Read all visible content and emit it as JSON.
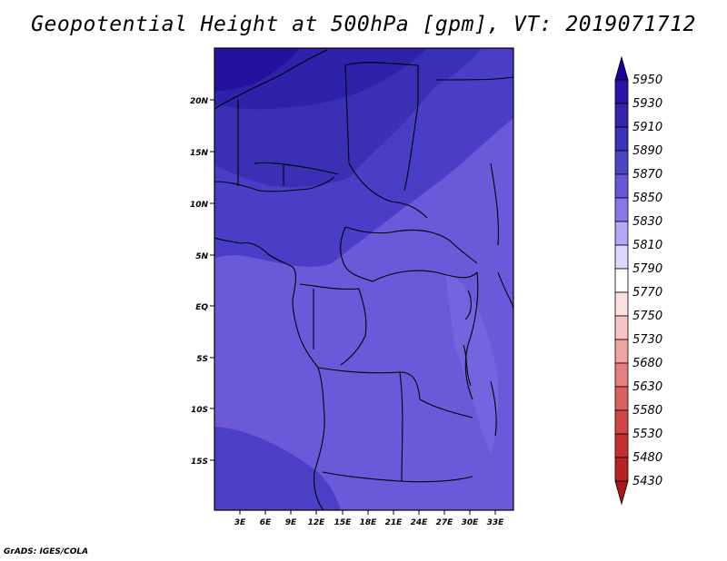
{
  "title": "Geopotential Height at 500hPa [gpm], VT: 2019071712",
  "credit": "GrADS: IGES/COLA",
  "map": {
    "lat_ticks": [
      "20N",
      "15N",
      "10N",
      "5N",
      "EQ",
      "5S",
      "10S",
      "15S"
    ],
    "lon_ticks": [
      "3E",
      "6E",
      "9E",
      "12E",
      "15E",
      "18E",
      "21E",
      "24E",
      "27E",
      "30E",
      "33E"
    ],
    "extent": {
      "lon_min": 0,
      "lon_max": 35,
      "lat_min": -20,
      "lat_max": 24
    }
  },
  "colorbar": {
    "levels": [
      "5950",
      "5930",
      "5910",
      "5890",
      "5870",
      "5850",
      "5830",
      "5810",
      "5790",
      "5770",
      "5750",
      "5730",
      "5680",
      "5630",
      "5580",
      "5530",
      "5480",
      "5430"
    ],
    "colors": [
      "#20009a",
      "#2a13a6",
      "#3324b0",
      "#3b34ba",
      "#4a46c8",
      "#6658d8",
      "#8878ea",
      "#b2a8f6",
      "#dcd8fc",
      "#ffffff",
      "#fce0e0",
      "#f8c4c4",
      "#f0a4a4",
      "#e68080",
      "#dc6060",
      "#d24646",
      "#c43030",
      "#b82222",
      "#a81818"
    ]
  }
}
